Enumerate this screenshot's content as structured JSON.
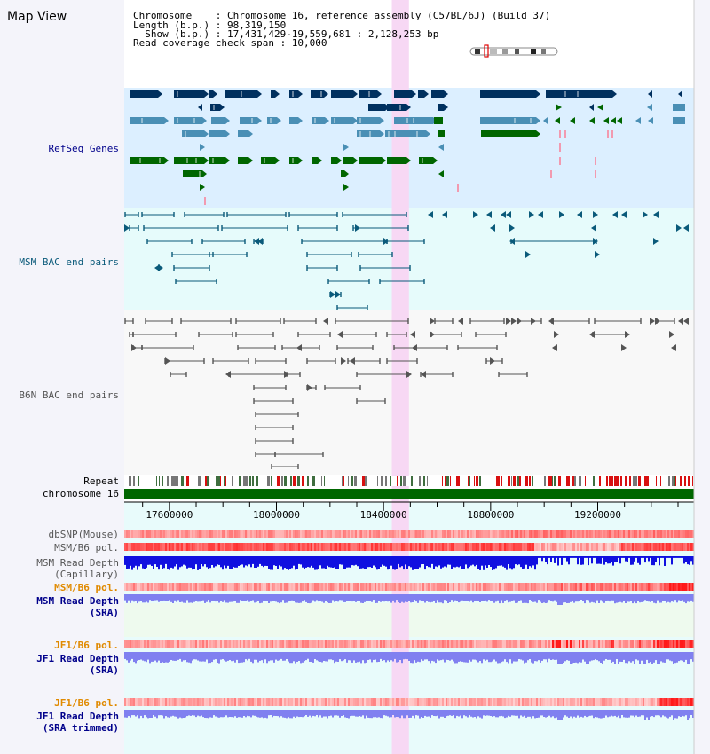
{
  "page": {
    "title": "Map View"
  },
  "header": {
    "lines": [
      "Chromosome    : Chromosome 16, reference assembly (C57BL/6J) (Build 37)",
      "Length (b.p.) : 98,319,150",
      "  Show (b.p.) : 17,431,429-19,559,681 : 2,128,253 bp",
      "Read coverage check span : 10,000"
    ]
  },
  "tracks": {
    "refseq": "RefSeq Genes",
    "msm_bac": "MSM BAC end pairs",
    "b6n_bac": "B6N BAC end pairs",
    "repeat": "Repeat",
    "chromosome": "chromosome 16",
    "dbsnp": "dbSNP(Mouse)",
    "msm_b6_pol_1": "MSM/B6 pol.",
    "msm_depth_cap_1": "MSM Read Depth",
    "msm_depth_cap_2": "(Capillary)",
    "msm_b6_pol_2": "MSM/B6 pol.",
    "msm_depth_sra_1": "MSM Read Depth",
    "msm_depth_sra_2": "(SRA)",
    "jf1_b6_pol_1": "JF1/B6 pol.",
    "jf1_depth_sra_1": "JF1 Read Depth",
    "jf1_depth_sra_2": "(SRA)",
    "jf1_b6_pol_2": "JF1/B6 pol.",
    "jf1_depth_trim_1": "JF1 Read Depth",
    "jf1_depth_trim_2": "(SRA trimmed)"
  },
  "axis": {
    "start": 17431429,
    "end": 19559681,
    "ticks": [
      "17600000",
      "18000000",
      "18400000",
      "18800000",
      "19200000"
    ]
  },
  "highlight": {
    "start": 18431000,
    "end": 18495000
  },
  "colors": {
    "refseq_bg": "#dcefff",
    "highlight": "#f7d8f4",
    "gene_dark": "#00305f",
    "gene_mid": "#4a8fb5",
    "gene_green": "#006600",
    "msm_line": "#0a5a7a",
    "b6n_line": "#555555",
    "chromosome": "#006600",
    "depth_dark": "#1010e0",
    "depth_light": "#8080f0",
    "label_blue": "#00008b",
    "label_orange": "#e08a00"
  }
}
